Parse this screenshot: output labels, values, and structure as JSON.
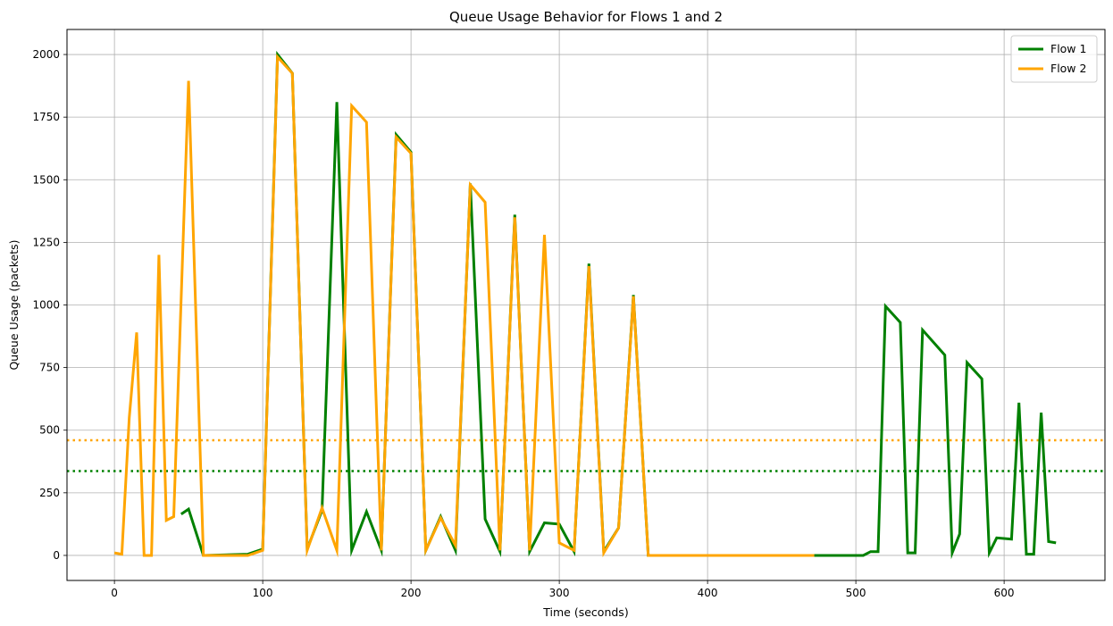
{
  "chart_data": {
    "type": "line",
    "title": "Queue Usage Behavior for Flows 1 and 2",
    "xlabel": "Time (seconds)",
    "ylabel": "Queue Usage (packets)",
    "xlim": [
      -32,
      668
    ],
    "ylim": [
      -100,
      2100
    ],
    "xticks": [
      0,
      100,
      200,
      300,
      400,
      500,
      600
    ],
    "yticks": [
      0,
      250,
      500,
      750,
      1000,
      1250,
      1500,
      1750,
      2000
    ],
    "grid": true,
    "legend_position": "top-right",
    "series": [
      {
        "name": "Flow 1",
        "color": "#008000",
        "x": [
          45,
          50,
          60,
          90,
          100,
          110,
          120,
          130,
          140,
          150,
          160,
          170,
          180,
          190,
          200,
          210,
          220,
          230,
          240,
          250,
          260,
          270,
          280,
          290,
          300,
          310,
          320,
          330,
          340,
          350,
          360,
          400,
          450,
          505,
          510,
          515,
          520,
          530,
          535,
          540,
          545,
          560,
          565,
          570,
          575,
          585,
          590,
          595,
          605,
          610,
          615,
          620,
          625,
          630,
          635
        ],
        "y": [
          165,
          185,
          0,
          5,
          25,
          2000,
          1925,
          25,
          180,
          1810,
          20,
          175,
          20,
          1680,
          1610,
          20,
          155,
          20,
          1485,
          145,
          15,
          1360,
          15,
          130,
          125,
          15,
          1165,
          15,
          110,
          1040,
          0,
          0,
          0,
          0,
          15,
          15,
          995,
          930,
          10,
          10,
          900,
          800,
          10,
          85,
          770,
          705,
          10,
          70,
          65,
          610,
          5,
          5,
          570,
          55,
          50
        ]
      },
      {
        "name": "Flow 2",
        "color": "#FFA500",
        "x": [
          0,
          5,
          10,
          15,
          20,
          25,
          30,
          35,
          40,
          50,
          60,
          90,
          100,
          110,
          120,
          130,
          140,
          150,
          160,
          170,
          180,
          190,
          200,
          210,
          220,
          230,
          240,
          250,
          260,
          270,
          280,
          290,
          300,
          310,
          320,
          330,
          340,
          350,
          360,
          400,
          472
        ],
        "y": [
          10,
          5,
          550,
          890,
          0,
          0,
          1200,
          140,
          155,
          1895,
          0,
          0,
          20,
          1990,
          1925,
          20,
          190,
          20,
          1795,
          1730,
          20,
          1670,
          1605,
          20,
          150,
          40,
          1480,
          1410,
          20,
          1350,
          20,
          1280,
          50,
          20,
          1155,
          10,
          110,
          1035,
          0,
          0,
          0
        ]
      }
    ],
    "reference_lines": [
      {
        "y": 460,
        "color": "#FFA500",
        "style": "dotted"
      },
      {
        "y": 337,
        "color": "#008000",
        "style": "dotted"
      }
    ]
  }
}
